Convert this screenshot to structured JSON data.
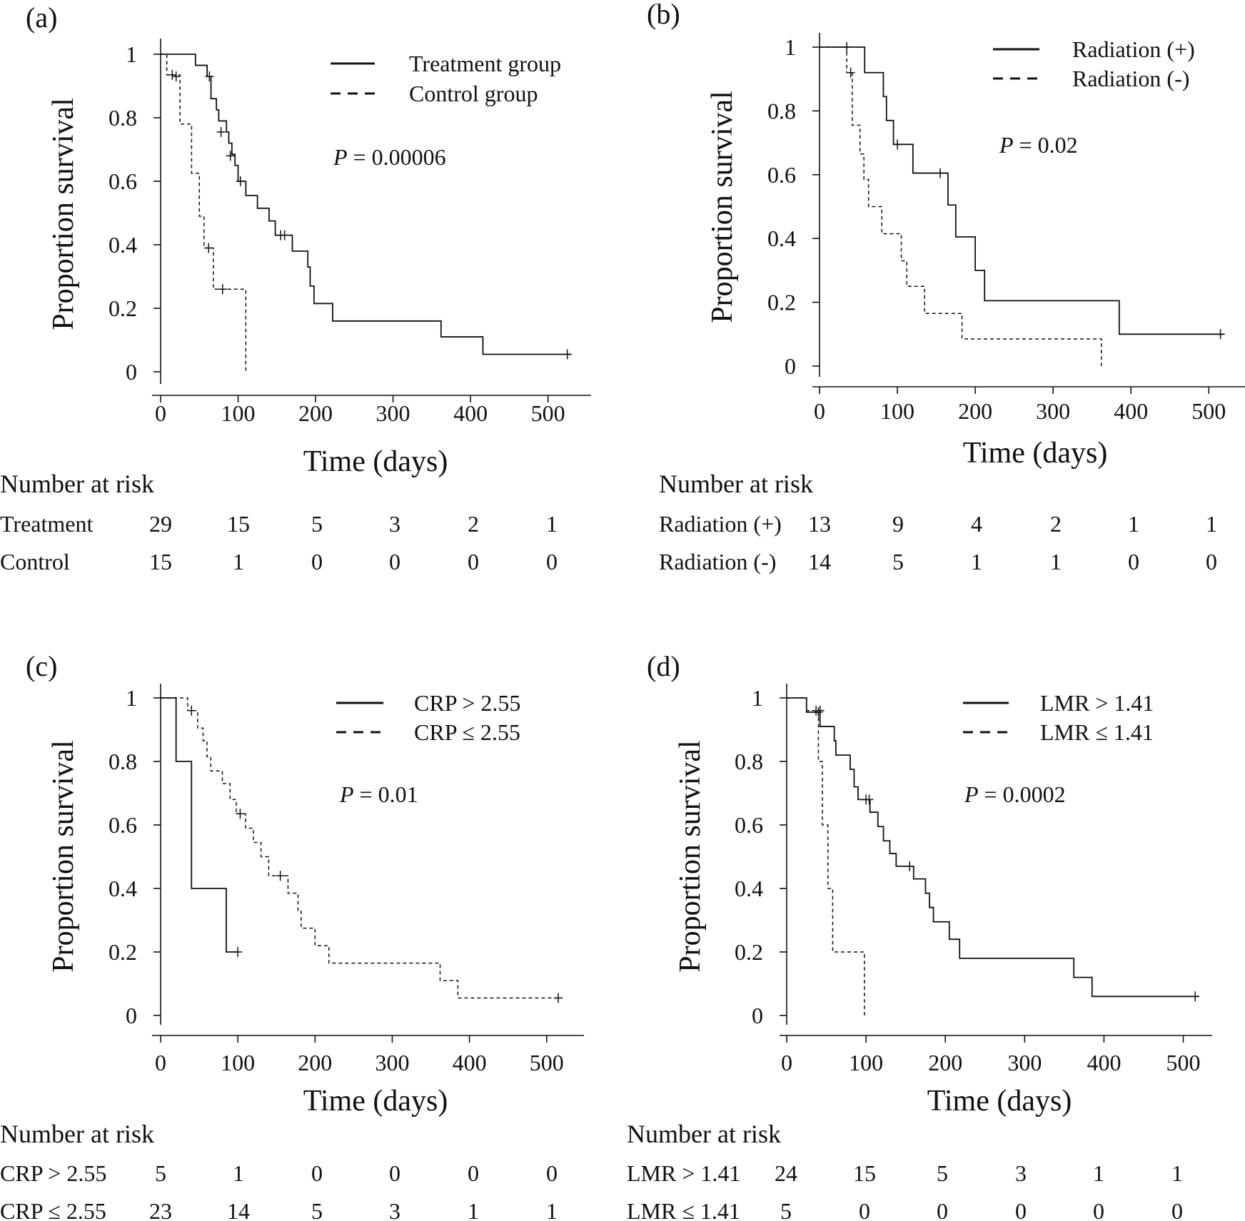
{
  "chart_data": [
    {
      "type": "line",
      "panel": "(a)",
      "xlabel": "Time (days)",
      "ylabel": "Proportion survival",
      "xlim": [
        0,
        540
      ],
      "ylim": [
        0,
        1
      ],
      "xticks": [
        "0",
        "100",
        "200",
        "300",
        "400",
        "500"
      ],
      "yticks": [
        "0",
        "0.2",
        "0.4",
        "0.6",
        "0.8",
        "1"
      ],
      "p_prefix": "P",
      "p_value": " = 0.00006",
      "legend": [
        "Treatment group",
        "Control group"
      ],
      "legend_position": "top-right",
      "series": [
        {
          "name": "Treatment group",
          "style": "solid",
          "steps": [
            [
              0,
              1
            ],
            [
              45,
              0.965
            ],
            [
              60,
              0.93
            ],
            [
              65,
              0.86
            ],
            [
              72,
              0.825
            ],
            [
              75,
              0.79
            ],
            [
              85,
              0.755
            ],
            [
              88,
              0.72
            ],
            [
              92,
              0.685
            ],
            [
              96,
              0.65
            ],
            [
              100,
              0.6
            ],
            [
              110,
              0.555
            ],
            [
              125,
              0.515
            ],
            [
              140,
              0.475
            ],
            [
              148,
              0.43
            ],
            [
              170,
              0.38
            ],
            [
              190,
              0.33
            ],
            [
              193,
              0.27
            ],
            [
              198,
              0.215
            ],
            [
              222,
              0.16
            ],
            [
              362,
              0.11
            ],
            [
              416,
              0.055
            ],
            [
              530,
              0.055
            ]
          ],
          "censor": [
            [
              20,
              0.93
            ],
            [
              63,
              0.93
            ],
            [
              78,
              0.755
            ],
            [
              90,
              0.68
            ],
            [
              103,
              0.6
            ],
            [
              155,
              0.43
            ],
            [
              160,
              0.43
            ],
            [
              525,
              0.055
            ]
          ]
        },
        {
          "name": "Control group",
          "style": "dashed",
          "steps": [
            [
              0,
              1
            ],
            [
              8,
              0.935
            ],
            [
              25,
              0.78
            ],
            [
              40,
              0.625
            ],
            [
              50,
              0.49
            ],
            [
              56,
              0.39
            ],
            [
              68,
              0.26
            ],
            [
              110,
              0.26
            ],
            [
              110,
              0
            ]
          ],
          "censor": [
            [
              15,
              0.935
            ],
            [
              62,
              0.39
            ],
            [
              80,
              0.26
            ]
          ]
        }
      ],
      "risk_title": "Number at risk",
      "risk_rows": [
        {
          "label": "Treatment",
          "counts": [
            "29",
            "15",
            "5",
            "3",
            "2",
            "1"
          ]
        },
        {
          "label": "Control",
          "counts": [
            "15",
            "1",
            "0",
            "0",
            "0",
            "0"
          ]
        }
      ]
    },
    {
      "type": "line",
      "panel": "(b)",
      "xlabel": "Time (days)",
      "ylabel": "Proportion survival",
      "xlim": [
        0,
        530
      ],
      "ylim": [
        0,
        1
      ],
      "xticks": [
        "0",
        "100",
        "200",
        "300",
        "400",
        "500"
      ],
      "yticks": [
        "0",
        "0.2",
        "0.4",
        "0.6",
        "0.8",
        "1"
      ],
      "p_prefix": "P",
      "p_value": " = 0.02",
      "legend": [
        "Radiation (+)",
        "Radiation (-)"
      ],
      "legend_position": "top-right",
      "series": [
        {
          "name": "Radiation (+)",
          "style": "solid",
          "steps": [
            [
              0,
              1
            ],
            [
              58,
              0.92
            ],
            [
              82,
              0.845
            ],
            [
              86,
              0.77
            ],
            [
              95,
              0.695
            ],
            [
              120,
              0.605
            ],
            [
              165,
              0.505
            ],
            [
              175,
              0.405
            ],
            [
              200,
              0.3
            ],
            [
              212,
              0.205
            ],
            [
              385,
              0.1
            ],
            [
              520,
              0.1
            ]
          ],
          "censor": [
            [
              100,
              0.695
            ],
            [
              155,
              0.605
            ],
            [
              515,
              0.1
            ]
          ]
        },
        {
          "name": "Radiation (-)",
          "style": "dashed",
          "steps": [
            [
              0,
              1
            ],
            [
              35,
              0.92
            ],
            [
              42,
              0.755
            ],
            [
              52,
              0.665
            ],
            [
              57,
              0.585
            ],
            [
              63,
              0.5
            ],
            [
              80,
              0.415
            ],
            [
              105,
              0.33
            ],
            [
              112,
              0.25
            ],
            [
              135,
              0.165
            ],
            [
              183,
              0.085
            ],
            [
              362,
              0.085
            ],
            [
              362,
              0
            ]
          ],
          "censor": [
            [
              35,
              1.0
            ],
            [
              40,
              0.92
            ]
          ]
        }
      ],
      "risk_title": "Number at risk",
      "risk_rows": [
        {
          "label": "Radiation (+)",
          "counts": [
            "13",
            "9",
            "4",
            "2",
            "1",
            "1"
          ]
        },
        {
          "label": "Radiation (-)",
          "counts": [
            "14",
            "5",
            "1",
            "1",
            "0",
            "0"
          ]
        }
      ]
    },
    {
      "type": "line",
      "panel": "(c)",
      "xlabel": "Time (days)",
      "ylabel": "Proportion survival",
      "xlim": [
        0,
        540
      ],
      "ylim": [
        0,
        1
      ],
      "xticks": [
        "0",
        "100",
        "200",
        "300",
        "400",
        "500"
      ],
      "yticks": [
        "0",
        "0.2",
        "0.4",
        "0.6",
        "0.8",
        "1"
      ],
      "p_prefix": "P",
      "p_value": " = 0.01",
      "legend": [
        "CRP > 2.55",
        "CRP ≤ 2.55"
      ],
      "legend_position": "top-right",
      "series": [
        {
          "name": "CRP > 2.55",
          "style": "solid",
          "steps": [
            [
              0,
              1
            ],
            [
              20,
              0.8
            ],
            [
              40,
              0.4
            ],
            [
              85,
              0.2
            ],
            [
              100,
              0.2
            ]
          ],
          "censor": [
            [
              100,
              0.2
            ]
          ]
        },
        {
          "name": "CRP ≤ 2.55",
          "style": "dashed",
          "steps": [
            [
              0,
              1
            ],
            [
              35,
              0.96
            ],
            [
              48,
              0.905
            ],
            [
              55,
              0.865
            ],
            [
              60,
              0.815
            ],
            [
              65,
              0.77
            ],
            [
              80,
              0.73
            ],
            [
              90,
              0.68
            ],
            [
              98,
              0.635
            ],
            [
              110,
              0.59
            ],
            [
              120,
              0.545
            ],
            [
              130,
              0.5
            ],
            [
              140,
              0.44
            ],
            [
              165,
              0.385
            ],
            [
              178,
              0.33
            ],
            [
              182,
              0.275
            ],
            [
              200,
              0.22
            ],
            [
              218,
              0.165
            ],
            [
              362,
              0.11
            ],
            [
              385,
              0.055
            ],
            [
              520,
              0.055
            ]
          ],
          "censor": [
            [
              40,
              0.96
            ],
            [
              103,
              0.635
            ],
            [
              155,
              0.44
            ],
            [
              515,
              0.055
            ]
          ]
        }
      ],
      "risk_title": "Number at risk",
      "risk_rows": [
        {
          "label": "CRP > 2.55",
          "counts": [
            "5",
            "1",
            "0",
            "0",
            "0",
            "0"
          ]
        },
        {
          "label": "CRP ≤ 2.55",
          "counts": [
            "23",
            "14",
            "5",
            "3",
            "1",
            "1"
          ]
        }
      ]
    },
    {
      "type": "line",
      "panel": "(d)",
      "xlabel": "Time (days)",
      "ylabel": "Proportion survival",
      "xlim": [
        0,
        540
      ],
      "ylim": [
        0,
        1
      ],
      "xticks": [
        "0",
        "100",
        "200",
        "300",
        "400",
        "500"
      ],
      "yticks": [
        "0",
        "0.2",
        "0.4",
        "0.6",
        "0.8",
        "1"
      ],
      "p_prefix": "P",
      "p_value": " = 0.0002",
      "legend": [
        "LMR > 1.41",
        "LMR ≤ 1.41"
      ],
      "legend_position": "top-right",
      "series": [
        {
          "name": "LMR > 1.41",
          "style": "solid",
          "steps": [
            [
              0,
              1
            ],
            [
              25,
              0.955
            ],
            [
              42,
              0.91
            ],
            [
              60,
              0.865
            ],
            [
              62,
              0.82
            ],
            [
              80,
              0.775
            ],
            [
              85,
              0.72
            ],
            [
              90,
              0.68
            ],
            [
              105,
              0.64
            ],
            [
              115,
              0.595
            ],
            [
              122,
              0.55
            ],
            [
              130,
              0.51
            ],
            [
              138,
              0.47
            ],
            [
              160,
              0.43
            ],
            [
              175,
              0.385
            ],
            [
              180,
              0.34
            ],
            [
              185,
              0.295
            ],
            [
              205,
              0.24
            ],
            [
              218,
              0.18
            ],
            [
              362,
              0.12
            ],
            [
              385,
              0.06
            ],
            [
              520,
              0.06
            ]
          ],
          "censor": [
            [
              40,
              0.955
            ],
            [
              100,
              0.68
            ],
            [
              104,
              0.68
            ],
            [
              155,
              0.47
            ],
            [
              515,
              0.06
            ]
          ]
        },
        {
          "name": "LMR ≤ 1.41",
          "style": "dashed",
          "steps": [
            [
              0,
              1
            ],
            [
              25,
              0.96
            ],
            [
              40,
              0.8
            ],
            [
              45,
              0.6
            ],
            [
              52,
              0.4
            ],
            [
              58,
              0.2
            ],
            [
              98,
              0.2
            ],
            [
              98,
              0
            ]
          ],
          "censor": [
            [
              37,
              0.96
            ],
            [
              42,
              0.96
            ]
          ]
        }
      ],
      "risk_title": "Number at risk",
      "risk_rows": [
        {
          "label": "LMR > 1.41",
          "counts": [
            "24",
            "15",
            "5",
            "3",
            "1",
            "1"
          ]
        },
        {
          "label": "LMR ≤ 1.41",
          "counts": [
            "5",
            "0",
            "0",
            "0",
            "0",
            "0"
          ]
        }
      ]
    }
  ]
}
